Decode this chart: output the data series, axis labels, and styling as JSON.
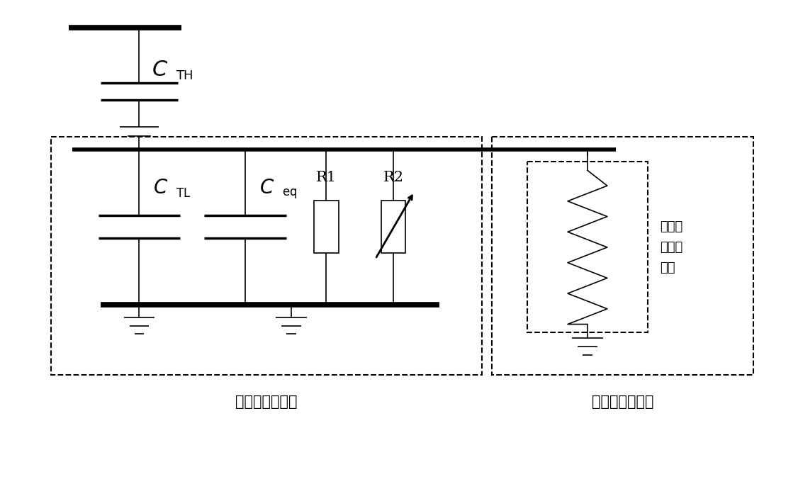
{
  "bg_color": "#ffffff",
  "line_color": "#000000",
  "fig_width": 11.26,
  "fig_height": 6.83,
  "dpi": 100,
  "label_box1": "末屏电压互感器",
  "label_box2": "直流极保护屏柜",
  "label_impedance": "输入回\n路等效\n阻抵"
}
